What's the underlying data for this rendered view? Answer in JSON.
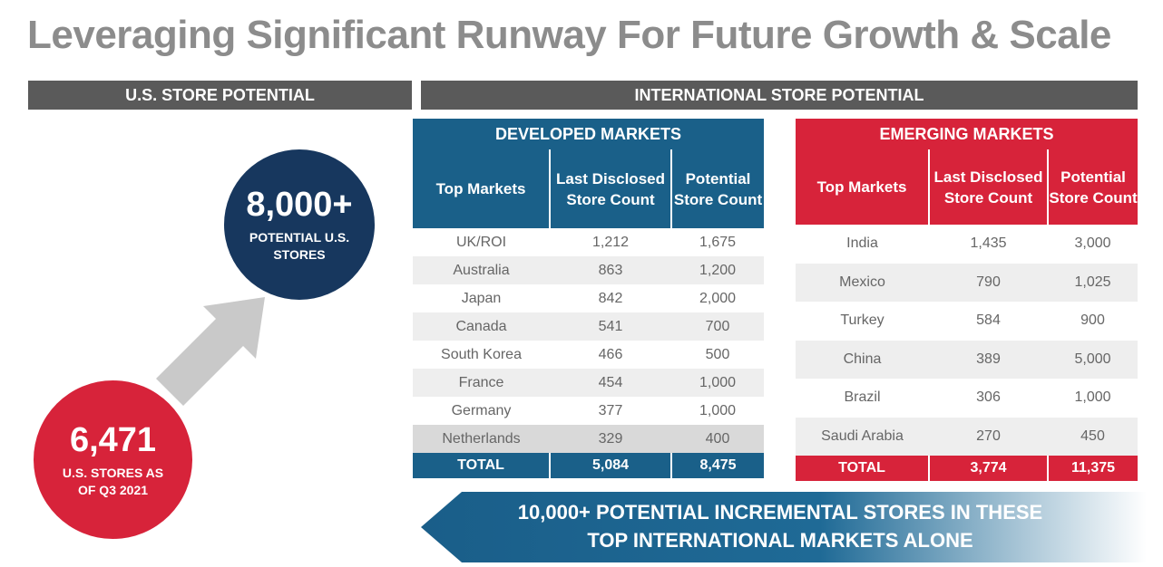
{
  "title": "Leveraging Significant Runway For Future Growth & Scale",
  "us_bar": "U.S. STORE POTENTIAL",
  "intl_bar": "INTERNATIONAL STORE POTENTIAL",
  "potential_circle": {
    "value": "8,000+",
    "label_line1": "POTENTIAL U.S.",
    "label_line2": "STORES"
  },
  "current_circle": {
    "value": "6,471",
    "label_line1": "U.S. STORES AS",
    "label_line2": "OF Q3 2021"
  },
  "developed": {
    "title": "DEVELOPED MARKETS",
    "headers": [
      "Top Markets",
      "Last Disclosed Store Count",
      "Potential Store Count"
    ],
    "rows": [
      [
        "UK/ROI",
        "1,212",
        "1,675"
      ],
      [
        "Australia",
        "863",
        "1,200"
      ],
      [
        "Japan",
        "842",
        "2,000"
      ],
      [
        "Canada",
        "541",
        "700"
      ],
      [
        "South Korea",
        "466",
        "500"
      ],
      [
        "France",
        "454",
        "1,000"
      ],
      [
        "Germany",
        "377",
        "1,000"
      ],
      [
        "Netherlands",
        "329",
        "400"
      ]
    ],
    "total": [
      "TOTAL",
      "5,084",
      "8,475"
    ]
  },
  "emerging": {
    "title": "EMERGING MARKETS",
    "headers": [
      "Top Markets",
      "Last Disclosed Store Count",
      "Potential Store Count"
    ],
    "rows": [
      [
        "India",
        "1,435",
        "3,000"
      ],
      [
        "Mexico",
        "790",
        "1,025"
      ],
      [
        "Turkey",
        "584",
        "900"
      ],
      [
        "China",
        "389",
        "5,000"
      ],
      [
        "Brazil",
        "306",
        "1,000"
      ],
      [
        "Saudi Arabia",
        "270",
        "450"
      ]
    ],
    "total": [
      "TOTAL",
      "3,774",
      "11,375"
    ]
  },
  "banner": {
    "line1": "10,000+ POTENTIAL INCREMENTAL STORES IN THESE",
    "line2": "TOP INTERNATIONAL MARKETS ALONE"
  },
  "colors": {
    "navy": "#17375e",
    "blue": "#1a6089",
    "red": "#d7233a",
    "gray_bar": "#5a5a5a",
    "title_gray": "#8c8c8c"
  }
}
